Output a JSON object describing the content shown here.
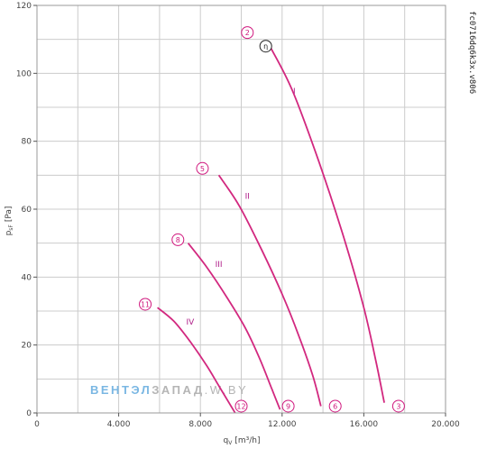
{
  "chart_data": {
    "type": "line",
    "xlabel": "q",
    "xlabel_sub": "V",
    "xlabel_unit": "[m³/h]",
    "ylabel": "p",
    "ylabel_sub": "sF",
    "ylabel_unit": "[Pa]",
    "xlim": [
      0,
      20000
    ],
    "ylim": [
      0,
      120
    ],
    "x_ticks": [
      0,
      4000,
      8000,
      12000,
      16000,
      20000
    ],
    "x_tick_labels": [
      "0",
      "4.000",
      "8.000",
      "12.000",
      "16.000",
      "20.000"
    ],
    "y_ticks": [
      0,
      20,
      40,
      60,
      80,
      100,
      120
    ],
    "y_tick_labels": [
      "0",
      "20",
      "40",
      "60",
      "80",
      "100",
      "120"
    ],
    "grid": true,
    "code": "fc0716dq6k3x.v806",
    "series": [
      {
        "name": "I",
        "points": [
          [
            11400,
            108
          ],
          [
            12500,
            95
          ],
          [
            13800,
            74
          ],
          [
            15000,
            52
          ],
          [
            16000,
            31
          ],
          [
            16600,
            15
          ],
          [
            17000,
            3
          ]
        ]
      },
      {
        "name": "II",
        "points": [
          [
            8900,
            70
          ],
          [
            9900,
            61
          ],
          [
            11000,
            48
          ],
          [
            12000,
            35
          ],
          [
            12800,
            23
          ],
          [
            13500,
            11
          ],
          [
            13900,
            2
          ]
        ]
      },
      {
        "name": "III",
        "points": [
          [
            7400,
            50
          ],
          [
            8300,
            43
          ],
          [
            9300,
            34
          ],
          [
            10200,
            25
          ],
          [
            10900,
            16
          ],
          [
            11500,
            7
          ],
          [
            11900,
            1
          ]
        ]
      },
      {
        "name": "IV",
        "points": [
          [
            5900,
            31
          ],
          [
            6700,
            27
          ],
          [
            7500,
            21
          ],
          [
            8300,
            14
          ],
          [
            8900,
            8
          ],
          [
            9400,
            3
          ],
          [
            9700,
            0
          ]
        ]
      }
    ],
    "markers": [
      {
        "label": "2",
        "x": 10300,
        "y": 112,
        "type": "pink"
      },
      {
        "label": "η",
        "x": 11200,
        "y": 108,
        "type": "black"
      },
      {
        "label": "5",
        "x": 8100,
        "y": 72,
        "type": "pink"
      },
      {
        "label": "8",
        "x": 6900,
        "y": 51,
        "type": "pink"
      },
      {
        "label": "11",
        "x": 5300,
        "y": 32,
        "type": "pink"
      },
      {
        "label": "12",
        "x": 10000,
        "y": 2,
        "type": "pink"
      },
      {
        "label": "9",
        "x": 12300,
        "y": 2,
        "type": "pink"
      },
      {
        "label": "6",
        "x": 14600,
        "y": 2,
        "type": "pink"
      },
      {
        "label": "3",
        "x": 17700,
        "y": 2,
        "type": "pink"
      }
    ],
    "curve_labels": [
      {
        "text": "I",
        "x": 12600,
        "y": 94
      },
      {
        "text": "II",
        "x": 10300,
        "y": 63
      },
      {
        "text": "III",
        "x": 8900,
        "y": 43
      },
      {
        "text": "IV",
        "x": 7500,
        "y": 26
      }
    ]
  },
  "watermark": {
    "part1": "ВЕНТЭЛ",
    "part2": "ЗАПАД",
    "part3": ".W.BY"
  },
  "colors": {
    "curve": "#d2287f",
    "marker": "#d0187e",
    "grid": "#cccccc",
    "frame": "#999999",
    "watermark_blue": "#7ab7e3",
    "watermark_grey": "#b5b5b5"
  }
}
